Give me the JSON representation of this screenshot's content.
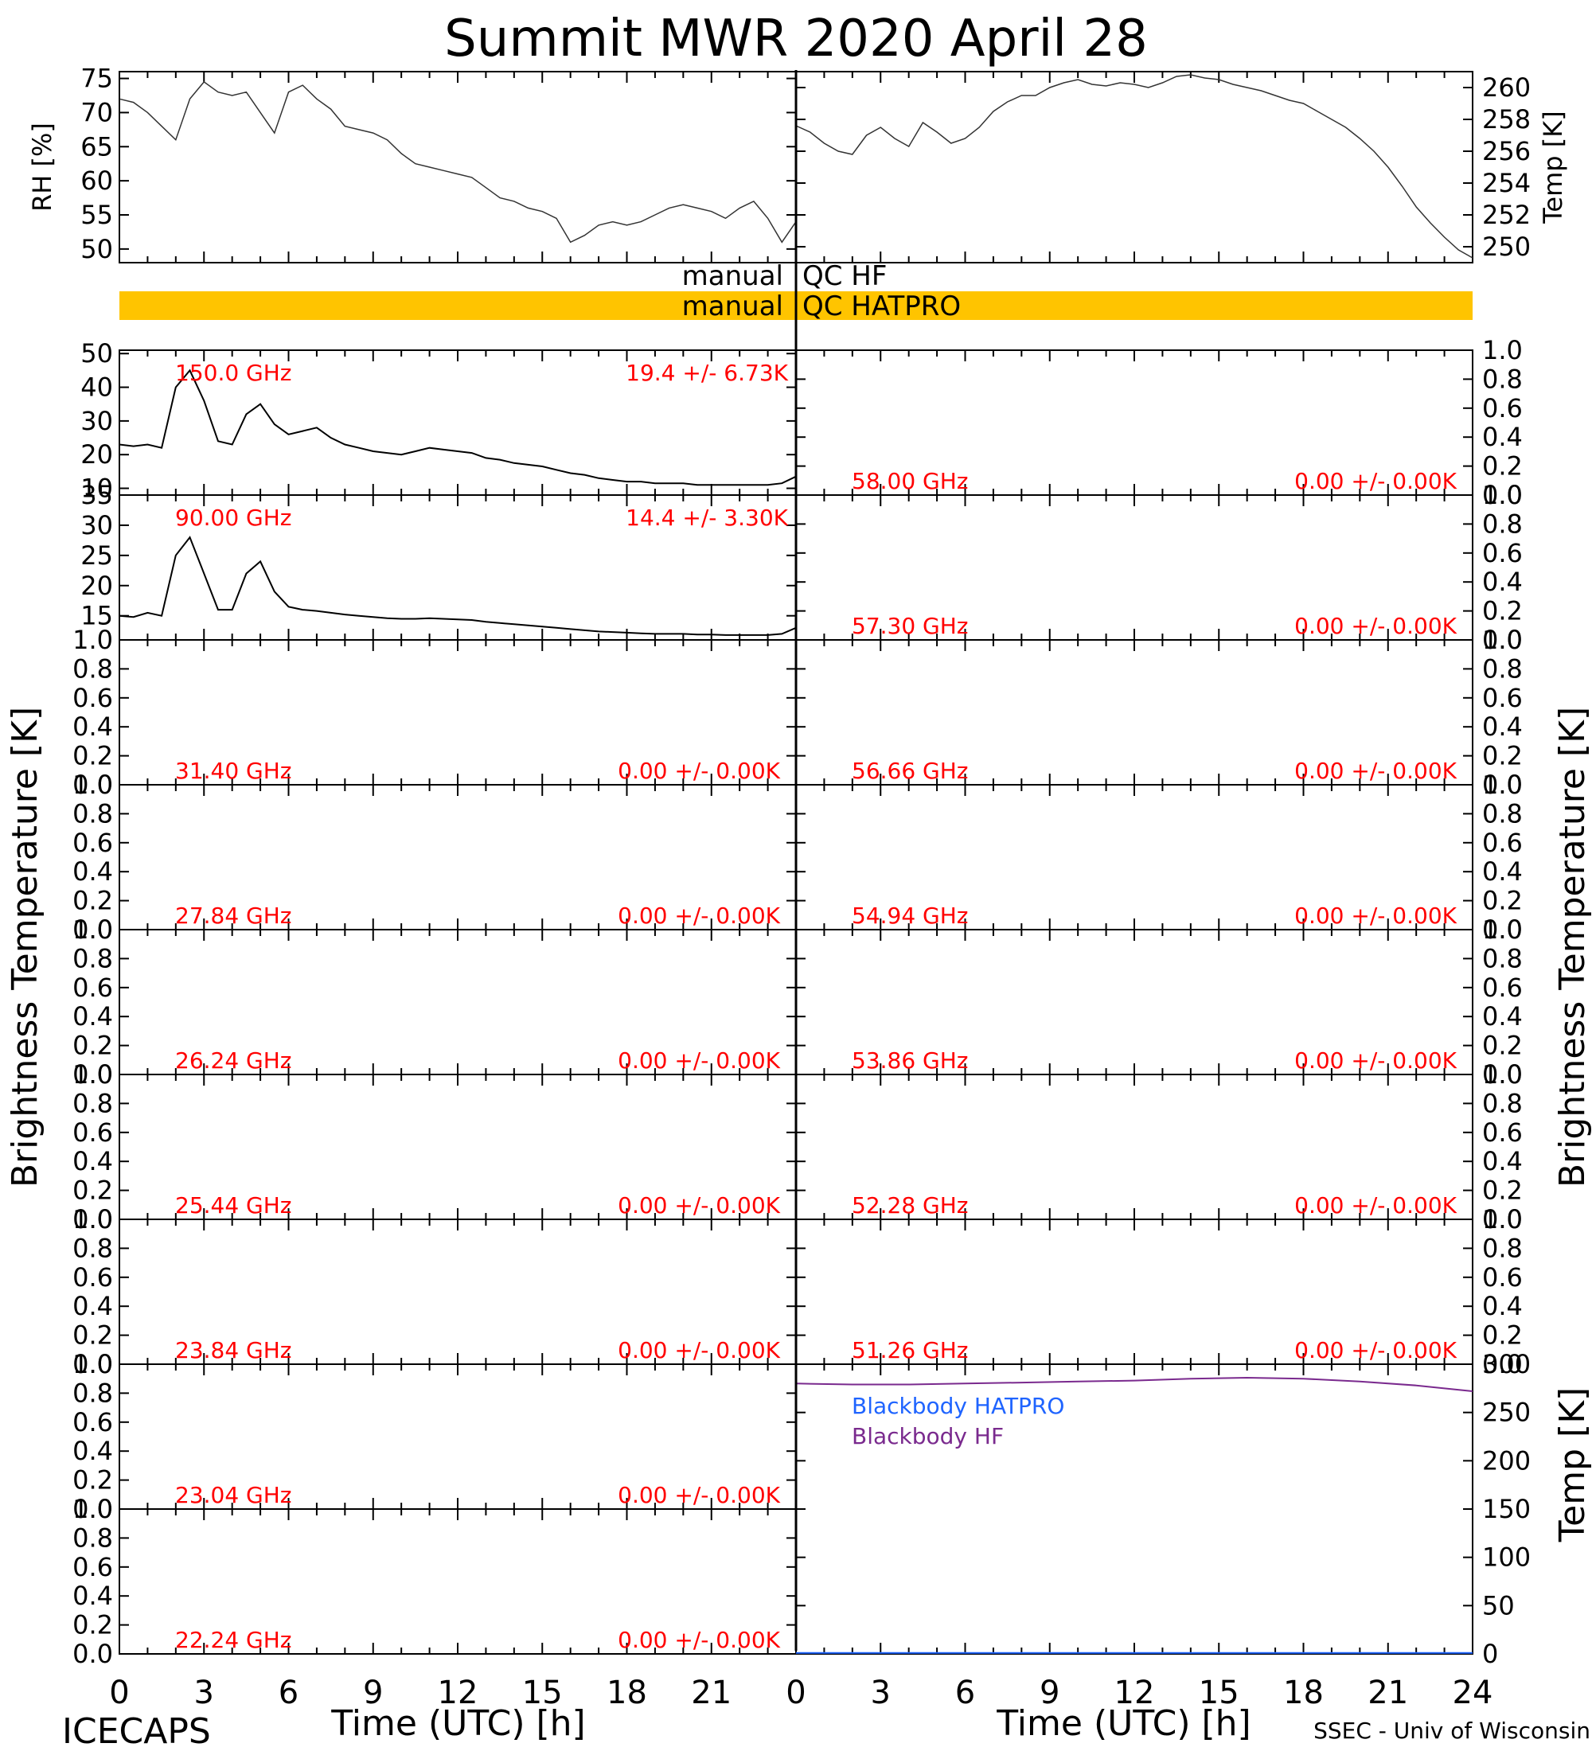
{
  "title": "Summit MWR 2020 April 28",
  "footer": {
    "left": "ICECAPS",
    "right": "SSEC - Univ of Wisconsin"
  },
  "left_side_label": "Brightness Temperature [K]",
  "right_side_label": "Brightness Temperature [K]",
  "xaxis": {
    "label": "Time (UTC) [h]",
    "left_ticks": [
      "0",
      "3",
      "6",
      "9",
      "12",
      "15",
      "18",
      "21"
    ],
    "right_ticks": [
      "0",
      "3",
      "6",
      "9",
      "12",
      "15",
      "18",
      "21",
      "24"
    ]
  },
  "qc": {
    "hf_label": {
      "a": "manual",
      "b": "QC HF"
    },
    "hatpro_label": {
      "a": "manual",
      "b": "QC HATPRO"
    },
    "hatpro_color": "#ffc400"
  },
  "colors": {
    "data": "#ff0000",
    "line": "#000000",
    "bb_hatpro": "#1f64ff",
    "bb_hf": "#7a2a8e"
  },
  "chart_data": [
    {
      "type": "line",
      "id": "rh",
      "ylabel": "RH [%]",
      "xlim": [
        0,
        24
      ],
      "ylim": [
        48,
        76
      ],
      "yticks": [
        50,
        55,
        60,
        65,
        70,
        75
      ],
      "x": [
        0,
        0.5,
        1,
        1.5,
        2,
        2.5,
        3,
        3.5,
        4,
        4.5,
        5,
        5.5,
        6,
        6.5,
        7,
        7.5,
        8,
        8.5,
        9,
        9.5,
        10,
        10.5,
        11,
        11.5,
        12,
        12.5,
        13,
        13.5,
        14,
        14.5,
        15,
        15.5,
        16,
        16.5,
        17,
        17.5,
        18,
        18.5,
        19,
        19.5,
        20,
        20.5,
        21,
        21.5,
        22,
        22.5,
        23,
        23.5,
        24
      ],
      "y": [
        72,
        71.5,
        70,
        68,
        66,
        72,
        74.5,
        73,
        72.5,
        73,
        70,
        67,
        73,
        74,
        72,
        70.5,
        68,
        67.5,
        67,
        66,
        64,
        62.5,
        62,
        61.5,
        61,
        60.5,
        59,
        57.5,
        57,
        56,
        55.5,
        54.5,
        51,
        52,
        53.5,
        54,
        53.5,
        54,
        55,
        56,
        56.5,
        56,
        55.5,
        54.5,
        56,
        57,
        54.5,
        51,
        54
      ]
    },
    {
      "type": "line",
      "id": "temp",
      "ylabel": "Temp [K]",
      "xlim": [
        0,
        24
      ],
      "ylim": [
        249,
        261
      ],
      "yticks": [
        250,
        252,
        254,
        256,
        258,
        260
      ],
      "x": [
        0,
        0.5,
        1,
        1.5,
        2,
        2.5,
        3,
        3.5,
        4,
        4.5,
        5,
        5.5,
        6,
        6.5,
        7,
        7.5,
        8,
        8.5,
        9,
        9.5,
        10,
        10.5,
        11,
        11.5,
        12,
        12.5,
        13,
        13.5,
        14,
        14.5,
        15,
        15.5,
        16,
        16.5,
        17,
        17.5,
        18,
        18.5,
        19,
        19.5,
        20,
        20.5,
        21,
        21.5,
        22,
        22.5,
        23,
        23.5,
        24
      ],
      "y": [
        257.6,
        257.2,
        256.5,
        256,
        255.8,
        257,
        257.5,
        256.8,
        256.3,
        257.8,
        257.2,
        256.5,
        256.8,
        257.5,
        258.5,
        259.1,
        259.5,
        259.5,
        260,
        260.3,
        260.5,
        260.2,
        260.1,
        260.3,
        260.2,
        260,
        260.3,
        260.7,
        260.8,
        260.6,
        260.5,
        260.2,
        260,
        259.8,
        259.5,
        259.2,
        259,
        258.5,
        258,
        257.5,
        256.8,
        256,
        255,
        253.8,
        252.5,
        251.5,
        250.6,
        249.8,
        249.3
      ]
    },
    {
      "type": "line",
      "id": "tb150",
      "side": "left",
      "freq_label": "150.0 GHz",
      "stat_label": "19.4 +/-  6.73K",
      "xlim": [
        0,
        24
      ],
      "ylim": [
        8,
        51
      ],
      "yticks": [
        10,
        20,
        30,
        40,
        50
      ],
      "x": [
        0,
        0.5,
        1,
        1.5,
        2,
        2.5,
        3,
        3.5,
        4,
        4.5,
        5,
        5.5,
        6,
        6.5,
        7,
        7.5,
        8,
        8.5,
        9,
        9.5,
        10,
        10.5,
        11,
        11.5,
        12,
        12.5,
        13,
        13.5,
        14,
        14.5,
        15,
        15.5,
        16,
        16.5,
        17,
        17.5,
        18,
        18.5,
        19,
        19.5,
        20,
        20.5,
        21,
        21.5,
        22,
        22.5,
        23,
        23.5,
        24
      ],
      "y": [
        23,
        22.5,
        23,
        22,
        40,
        45,
        36,
        24,
        23,
        32,
        35,
        29,
        26,
        27,
        28,
        25,
        23,
        22,
        21,
        20.5,
        20,
        21,
        22,
        21.5,
        21,
        20.5,
        19,
        18.5,
        17.5,
        17,
        16.5,
        15.5,
        14.5,
        14,
        13,
        12.5,
        12,
        12,
        11.5,
        11.5,
        11.5,
        11,
        11,
        11,
        11,
        11,
        11,
        11.5,
        13.5
      ]
    },
    {
      "type": "line",
      "id": "tb90",
      "side": "left",
      "freq_label": "90.00 GHz",
      "stat_label": "14.4 +/-  3.30K",
      "xlim": [
        0,
        24
      ],
      "ylim": [
        11,
        35
      ],
      "yticks": [
        15,
        20,
        25,
        30,
        35
      ],
      "x": [
        0,
        0.5,
        1,
        1.5,
        2,
        2.5,
        3,
        3.5,
        4,
        4.5,
        5,
        5.5,
        6,
        6.5,
        7,
        7.5,
        8,
        8.5,
        9,
        9.5,
        10,
        10.5,
        11,
        11.5,
        12,
        12.5,
        13,
        13.5,
        14,
        14.5,
        15,
        15.5,
        16,
        16.5,
        17,
        17.5,
        18,
        18.5,
        19,
        19.5,
        20,
        20.5,
        21,
        21.5,
        22,
        22.5,
        23,
        23.5,
        24
      ],
      "y": [
        15,
        14.8,
        15.5,
        15,
        25,
        28,
        22,
        16,
        16,
        22,
        24,
        19,
        16.5,
        16,
        15.8,
        15.5,
        15.2,
        15,
        14.8,
        14.6,
        14.5,
        14.5,
        14.6,
        14.5,
        14.4,
        14.3,
        14,
        13.8,
        13.6,
        13.4,
        13.2,
        13,
        12.8,
        12.6,
        12.4,
        12.3,
        12.2,
        12.1,
        12,
        12,
        12,
        11.9,
        11.9,
        11.8,
        11.8,
        11.8,
        11.8,
        12,
        13
      ]
    }
  ],
  "empty_panels_left": [
    {
      "freq_label": "31.40 GHz",
      "stat_label": "0.00 +/-  0.00K"
    },
    {
      "freq_label": "27.84 GHz",
      "stat_label": "0.00 +/-  0.00K"
    },
    {
      "freq_label": "26.24 GHz",
      "stat_label": "0.00 +/-  0.00K"
    },
    {
      "freq_label": "25.44 GHz",
      "stat_label": "0.00 +/-  0.00K"
    },
    {
      "freq_label": "23.84 GHz",
      "stat_label": "0.00 +/-  0.00K"
    },
    {
      "freq_label": "23.04 GHz",
      "stat_label": "0.00 +/-  0.00K"
    },
    {
      "freq_label": "22.24 GHz",
      "stat_label": "0.00 +/-  0.00K"
    }
  ],
  "empty_panels_right": [
    {
      "freq_label": "58.00 GHz",
      "stat_label": "0.00 +/-  0.00K"
    },
    {
      "freq_label": "57.30 GHz",
      "stat_label": "0.00 +/-  0.00K"
    },
    {
      "freq_label": "56.66 GHz",
      "stat_label": "0.00 +/-  0.00K"
    },
    {
      "freq_label": "54.94 GHz",
      "stat_label": "0.00 +/-  0.00K"
    },
    {
      "freq_label": "53.86 GHz",
      "stat_label": "0.00 +/-  0.00K"
    },
    {
      "freq_label": "52.28 GHz",
      "stat_label": "0.00 +/-  0.00K"
    },
    {
      "freq_label": "51.26 GHz",
      "stat_label": "0.00 +/-  0.00K"
    }
  ],
  "empty_yticks": [
    "0.0",
    "0.2",
    "0.4",
    "0.6",
    "0.8",
    "1.0"
  ],
  "blackbody": {
    "ylabel": "Temp [K]",
    "ylim": [
      0,
      300
    ],
    "yticks": [
      0,
      50,
      100,
      150,
      200,
      250,
      300
    ],
    "legend": {
      "hatpro": "Blackbody HATPRO",
      "hf": "Blackbody HF"
    },
    "x": [
      0,
      2,
      4,
      6,
      8,
      10,
      12,
      14,
      16,
      18,
      20,
      22,
      24
    ],
    "hf_y": [
      280,
      279,
      279,
      280,
      281,
      282,
      283,
      285,
      286,
      285,
      282,
      278,
      272
    ],
    "hatpro_y": [
      1,
      1,
      1,
      1,
      1,
      1,
      1,
      1,
      1,
      1,
      1,
      1,
      1
    ]
  }
}
